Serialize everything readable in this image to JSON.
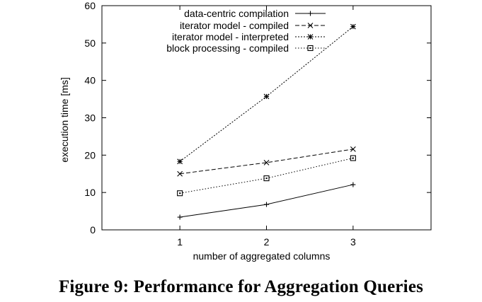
{
  "caption": "Figure 9: Performance for Aggregation Queries",
  "chart_data": {
    "type": "line",
    "title": "",
    "xlabel": "number of aggregated columns",
    "ylabel": "execution time [ms]",
    "x": [
      1,
      2,
      3
    ],
    "xlim": [
      0.1,
      3.9
    ],
    "ylim": [
      0,
      60
    ],
    "xticks": [
      "1",
      "2",
      "3"
    ],
    "yticks": [
      "0",
      "10",
      "20",
      "30",
      "40",
      "50",
      "60"
    ],
    "grid": false,
    "legend_position": "top-right (inside)",
    "series": [
      {
        "name": "data-centric compilation",
        "values": [
          3.4,
          6.8,
          12.1
        ],
        "marker": "plus",
        "dash": "solid"
      },
      {
        "name": "iterator model - compiled",
        "values": [
          15.0,
          18.0,
          21.6
        ],
        "marker": "cross",
        "dash": "dashed"
      },
      {
        "name": "iterator model - interpreted",
        "values": [
          18.3,
          35.7,
          54.4
        ],
        "marker": "star",
        "dash": "dotted-fine"
      },
      {
        "name": "block processing - compiled",
        "values": [
          9.8,
          13.8,
          19.2
        ],
        "marker": "square",
        "dash": "dotted"
      }
    ]
  }
}
